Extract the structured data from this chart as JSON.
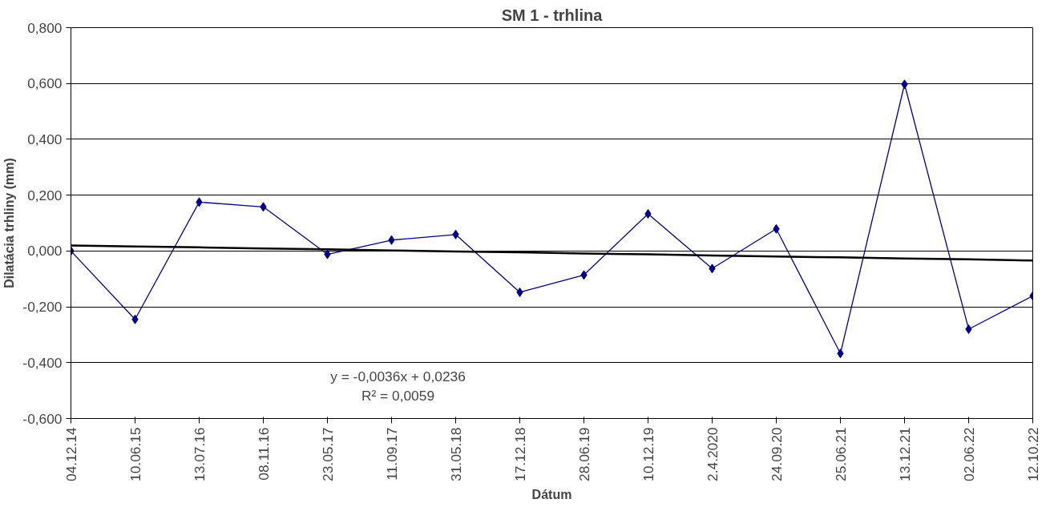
{
  "chart_data": {
    "type": "line",
    "title": "SM 1 - trhlina",
    "xlabel": "Dátum",
    "ylabel": "Dilatácia trhliny (mm)",
    "categories": [
      "04.12.14",
      "10.06.15",
      "13.07.16",
      "08.11.16",
      "23.05.17",
      "11.09.17",
      "31.05.18",
      "17.12.18",
      "28.06.19",
      "10.12.19",
      "2.4.2020",
      "24.09.20",
      "25.06.21",
      "13.12.21",
      "02.06.22",
      "12.10.22"
    ],
    "series": [
      {
        "color": "#000080",
        "marker": "diamond",
        "values": [
          0.0,
          -0.245,
          0.175,
          0.158,
          -0.012,
          0.039,
          0.059,
          -0.148,
          -0.086,
          0.133,
          -0.063,
          0.079,
          -0.367,
          0.597,
          -0.28,
          -0.161
        ]
      },
      {
        "color": "#000000",
        "marker": "none",
        "values": [
          0.02,
          0.016,
          0.013,
          0.009,
          0.006,
          0.002,
          -0.002,
          -0.005,
          -0.009,
          -0.012,
          -0.016,
          -0.02,
          -0.023,
          -0.027,
          -0.03,
          -0.034
        ]
      }
    ],
    "ylim": [
      -0.6,
      0.8
    ],
    "yticks": [
      {
        "value": -0.6,
        "label": "-0,600"
      },
      {
        "value": -0.4,
        "label": "-0,400"
      },
      {
        "value": -0.2,
        "label": "-0,200"
      },
      {
        "value": 0,
        "label": "0,000"
      },
      {
        "value": 0.2,
        "label": "0,200"
      },
      {
        "value": 0.4,
        "label": "0,400"
      },
      {
        "value": 0.6,
        "label": "0,600"
      },
      {
        "value": 0.8,
        "label": "0,800"
      }
    ],
    "grid": "y",
    "line_style": "solid",
    "annotations": [
      "y = -0,0036x + 0,0236",
      "R² = 0,0059"
    ]
  }
}
